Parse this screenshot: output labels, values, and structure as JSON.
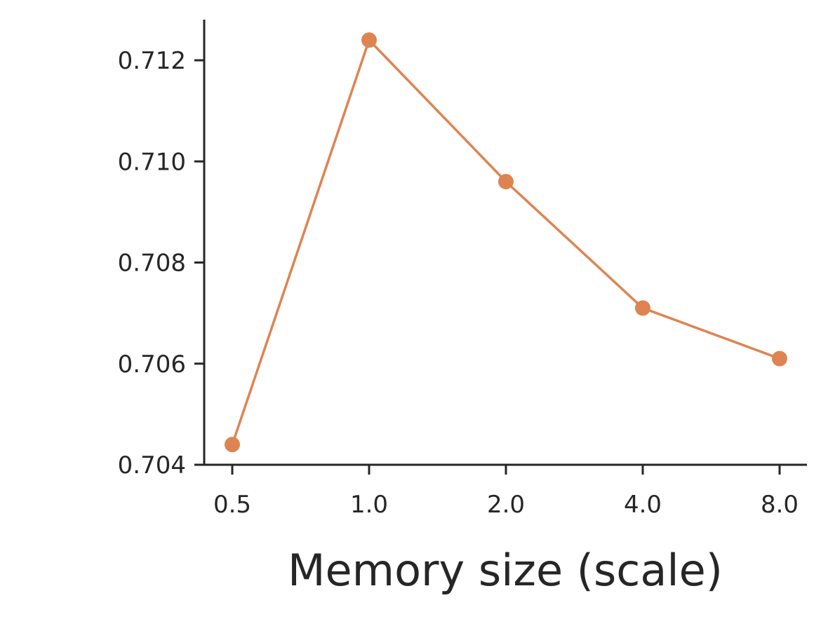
{
  "chart_data": {
    "type": "line",
    "title": "",
    "xlabel": "Memory size (scale)",
    "ylabel": "",
    "categories": [
      "0.5",
      "1.0",
      "2.0",
      "4.0",
      "8.0"
    ],
    "series": [
      {
        "values": [
          0.7044,
          0.7124,
          0.7096,
          0.7071,
          0.7061
        ],
        "color": "#DD8452",
        "marker": "circle"
      }
    ],
    "ylim": [
      0.704,
      0.7128
    ],
    "yticks": [
      "0.704",
      "0.706",
      "0.708",
      "0.710",
      "0.712"
    ],
    "ytick_values": [
      0.704,
      0.706,
      0.708,
      0.71,
      0.712
    ],
    "grid": false,
    "legend": "none",
    "axis_color": "#262626"
  }
}
